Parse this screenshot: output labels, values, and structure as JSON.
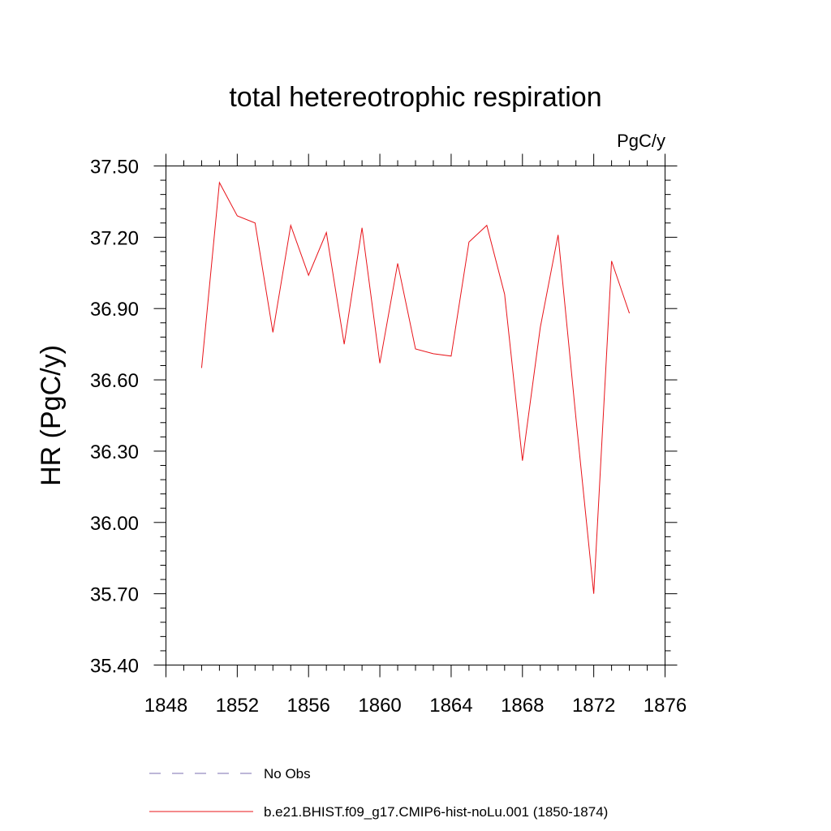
{
  "chart_data": {
    "type": "line",
    "title": "total hetereotrophic respiration",
    "units_label": "PgC/y",
    "ylabel": "HR  (PgC/y)",
    "xlabel": "",
    "xlim": [
      1848,
      1876
    ],
    "ylim": [
      35.4,
      37.5
    ],
    "x_ticks": [
      1848,
      1852,
      1856,
      1860,
      1864,
      1868,
      1872,
      1876
    ],
    "x_tick_labels": [
      "1848",
      "1852",
      "1856",
      "1860",
      "1864",
      "1868",
      "1872",
      "1876"
    ],
    "y_ticks": [
      35.4,
      35.7,
      36.0,
      36.3,
      36.6,
      36.9,
      37.2,
      37.5
    ],
    "y_tick_labels": [
      "35.40",
      "35.70",
      "36.00",
      "36.30",
      "36.60",
      "36.90",
      "37.20",
      "37.50"
    ],
    "grid": false,
    "legend_position": "bottom",
    "series": [
      {
        "name": "No Obs",
        "color": "#7b6fb0",
        "dash": "dashed",
        "x": [],
        "values": []
      },
      {
        "name": "b.e21.BHIST.f09_g17.CMIP6-hist-noLu.001 (1850-1874)",
        "color": "#e8141a",
        "dash": "solid",
        "x": [
          1850,
          1851,
          1852,
          1853,
          1854,
          1855,
          1856,
          1857,
          1858,
          1859,
          1860,
          1861,
          1862,
          1863,
          1864,
          1865,
          1866,
          1867,
          1868,
          1869,
          1870,
          1871,
          1872,
          1873,
          1874
        ],
        "values": [
          36.65,
          37.43,
          37.29,
          37.26,
          36.8,
          37.25,
          37.04,
          37.22,
          36.75,
          37.24,
          36.67,
          37.09,
          36.73,
          36.71,
          36.7,
          37.18,
          37.25,
          36.96,
          36.26,
          36.82,
          37.21,
          36.44,
          35.7,
          37.1,
          36.88
        ]
      }
    ]
  }
}
